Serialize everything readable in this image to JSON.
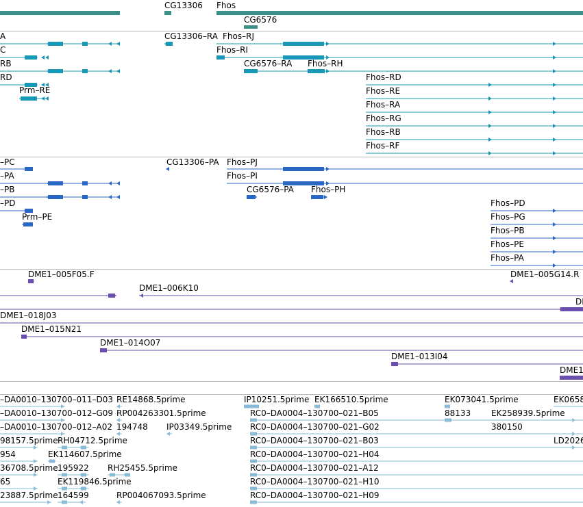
{
  "colors": {
    "gene": "#3a8f86",
    "transcript": "#1898b5",
    "protein": "#2a66c4",
    "clone": "#6a4fae",
    "est": "#88bbd8",
    "separator": "#b8b8b8"
  },
  "tracks": {
    "gene": {
      "labels": [
        "CG13306",
        "Fhos",
        "CG6576"
      ]
    },
    "transcript": {
      "labels": [
        "A",
        "C",
        "RB",
        "RD",
        "Prm–RE",
        "CG13306–RA",
        "Fhos–RJ",
        "Fhos–RI",
        "CG6576–RA",
        "Fhos–RH",
        "Fhos–RD",
        "Fhos–RE",
        "Fhos–RA",
        "Fhos–RG",
        "Fhos–RB",
        "Fhos–RF"
      ]
    },
    "protein": {
      "labels": [
        "–PC",
        "–PA",
        "–PB",
        "–PD",
        "Prm–PE",
        "CG13306–PA",
        "Fhos–PJ",
        "Fhos–PI",
        "CG6576–PA",
        "Fhos–PH",
        "Fhos–PD",
        "Fhos–PG",
        "Fhos–PB",
        "Fhos–PE",
        "Fhos–PA"
      ]
    },
    "clone": {
      "labels": [
        "DME1–005F05.F",
        "DME1–005G14.R",
        "DME1–006K10",
        "DI",
        "DME1–018J03",
        "DME1–015N21",
        "DME1–014O07",
        "DME1–013I04",
        "DME1"
      ]
    },
    "est": {
      "labels": [
        "–DA0010–130700–011–D03",
        "RE14868.5prime",
        "IP10251.5prime",
        "EK166510.5prime",
        "EK073041.5prime",
        "EK0658",
        "–DA0010–130700–012–G09",
        "RP004263301.5prime",
        "RC0–DA0004–130700–021–B05",
        "88133",
        "EK258939.5prime",
        "–DA0010–130700–012–A02",
        "194748",
        "IP03349.5prime",
        "RC0–DA0004–130700–021–G02",
        "380150",
        "98157.5prime",
        "RH04712.5prime",
        "RC0–DA0004–130700–021–B03",
        "LD2026",
        "954",
        "EK114607.5prime",
        "RC0–DA0004–130700–021–H04",
        "36708.5prime",
        "195922",
        "RH25455.5prime",
        "RC0–DA0004–130700–021–A12",
        "65",
        "EK119846.5prime",
        "RC0–DA0004–130700–021–H10",
        "23887.5prime",
        "164599",
        "RP004067093.5prime",
        "RC0–DA0004–130700–021–H09"
      ]
    }
  }
}
